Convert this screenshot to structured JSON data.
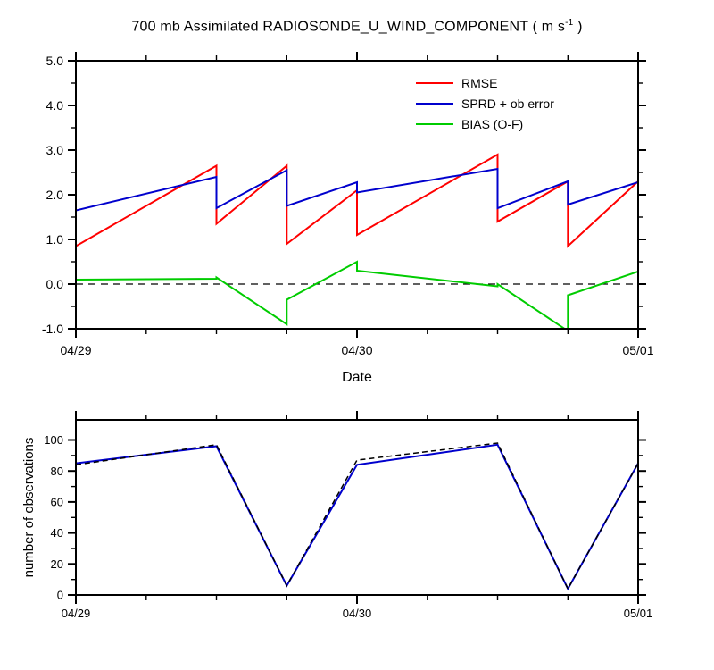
{
  "title": {
    "prefix": "700 mb Assimilated RADIOSONDE_U_WIND_COMPONENT ( m s",
    "superscript": "-1",
    "suffix": " )",
    "full_text": "700 mb Assimilated RADIOSONDE_U_WIND_COMPONENT ( m s-1 )"
  },
  "chart_data": [
    {
      "type": "line",
      "title": "700 mb Assimilated RADIOSONDE_U_WIND_COMPONENT ( m s-1 )",
      "xlabel": "Date",
      "ylabel": "",
      "x_unit": "days since 04/29 00Z",
      "xlim": [
        0,
        2
      ],
      "ylim": [
        -1.0,
        5.0
      ],
      "x_ticks": [
        {
          "t": 0,
          "label": "04/29"
        },
        {
          "t": 1,
          "label": "04/30"
        },
        {
          "t": 2,
          "label": "05/01"
        }
      ],
      "x_minor_step": 0.25,
      "y_ticks": [
        -1,
        0,
        1,
        2,
        3,
        4,
        5
      ],
      "y_tick_labels": [
        "-1.0",
        "0.0",
        "1.0",
        "2.0",
        "3.0",
        "4.0",
        "5.0"
      ],
      "y_minor_step": 0.5,
      "grid": false,
      "zero_line": true,
      "zero_line_color": "#000000",
      "axis_color": "#000000",
      "show_legend": true,
      "legend_position": "upper-center-inside",
      "series": [
        {
          "name": "RMSE",
          "color": "#ff0000",
          "width": 2,
          "points": [
            [
              0,
              0.85
            ],
            [
              0.5,
              2.65
            ],
            [
              0.5,
              1.35
            ],
            [
              0.75,
              2.65
            ],
            [
              0.75,
              0.9
            ],
            [
              1,
              2.1
            ],
            [
              1,
              1.1
            ],
            [
              1.5,
              2.9
            ],
            [
              1.5,
              1.4
            ],
            [
              1.75,
              2.3
            ],
            [
              1.75,
              0.85
            ],
            [
              2,
              2.3
            ]
          ]
        },
        {
          "name": "SPRD + ob error",
          "color": "#0000cd",
          "width": 2,
          "points": [
            [
              0,
              1.65
            ],
            [
              0.5,
              2.4
            ],
            [
              0.5,
              1.7
            ],
            [
              0.75,
              2.55
            ],
            [
              0.75,
              1.75
            ],
            [
              1,
              2.28
            ],
            [
              1,
              2.05
            ],
            [
              1.5,
              2.58
            ],
            [
              1.5,
              1.7
            ],
            [
              1.75,
              2.3
            ],
            [
              1.75,
              1.78
            ],
            [
              2,
              2.28
            ]
          ]
        },
        {
          "name": "BIAS (O-F)",
          "color": "#00cc00",
          "width": 2,
          "points": [
            [
              0,
              0.1
            ],
            [
              0.5,
              0.12
            ],
            [
              0.5,
              0.15
            ],
            [
              0.75,
              -0.9
            ],
            [
              0.75,
              -0.35
            ],
            [
              1,
              0.5
            ],
            [
              1,
              0.3
            ],
            [
              1.5,
              -0.05
            ],
            [
              1.5,
              0.0
            ],
            [
              1.75,
              -1.05
            ],
            [
              1.75,
              -0.25
            ],
            [
              2,
              0.28
            ]
          ]
        }
      ]
    },
    {
      "type": "line",
      "title": "",
      "xlabel": "",
      "ylabel": "number of observations",
      "x_unit": "days since 04/29 00Z",
      "xlim": [
        0,
        2
      ],
      "ylim": [
        0,
        100
      ],
      "x_ticks": [
        {
          "t": 0,
          "label": "04/29"
        },
        {
          "t": 1,
          "label": "04/30"
        },
        {
          "t": 2,
          "label": "05/01"
        }
      ],
      "x_minor_step": 0.25,
      "y_ticks": [
        0,
        20,
        40,
        60,
        80,
        100
      ],
      "y_tick_labels": [
        "0",
        "20",
        "40",
        "60",
        "80",
        "100"
      ],
      "y_minor_step": 10,
      "grid": false,
      "zero_line": false,
      "axis_color": "#000000",
      "show_legend": false,
      "series": [
        {
          "name": "blue solid line",
          "color": "#0000cd",
          "width": 2,
          "points": [
            [
              0,
              85
            ],
            [
              0.5,
              96
            ],
            [
              0.75,
              6
            ],
            [
              1,
              84
            ],
            [
              1.5,
              97
            ],
            [
              1.75,
              4
            ],
            [
              2,
              85
            ]
          ]
        },
        {
          "name": "black dashed line",
          "color": "#000000",
          "width": 1.5,
          "dash": "6 4",
          "points": [
            [
              0,
              84
            ],
            [
              0.5,
              97
            ],
            [
              0.75,
              6
            ],
            [
              1,
              87
            ],
            [
              1.5,
              98
            ],
            [
              1.75,
              4
            ],
            [
              2,
              85
            ]
          ]
        }
      ]
    }
  ]
}
